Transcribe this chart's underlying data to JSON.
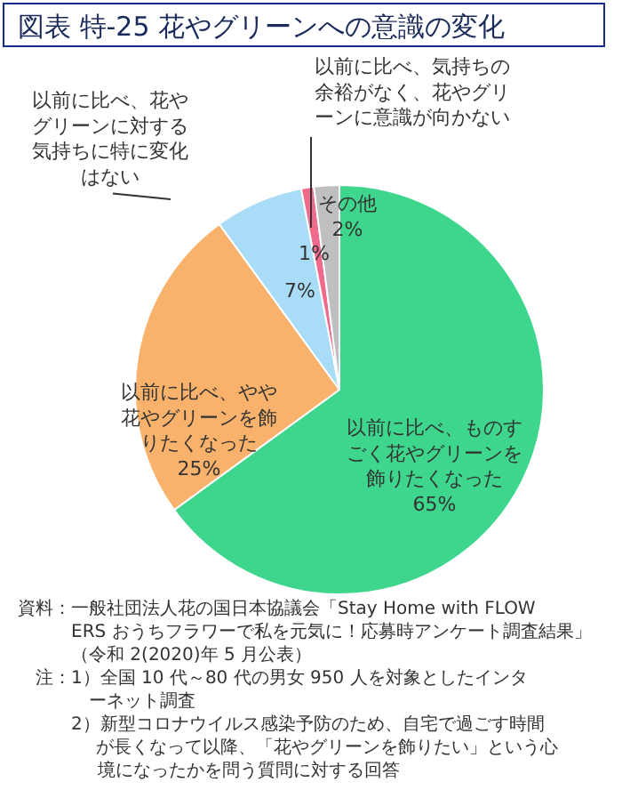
{
  "chart_data": {
    "type": "pie",
    "title": "図表 特-25 花やグリーンへの意識の変化",
    "categories": [
      "以前に比べ、ものすごく花やグリーンを飾りたくなった",
      "以前に比べ、やや花やグリーンを飾りたくなった",
      "以前に比べ、花やグリーンに対する気持ちに特に変化はない",
      "以前に比べ、気持ちの余裕がなく、花やグリーンに意識が向かない",
      "その他"
    ],
    "values": [
      65,
      25,
      7,
      1,
      2
    ],
    "value_labels": [
      "65%",
      "25%",
      "7%",
      "1%",
      "2%"
    ],
    "colors": [
      "#3dd68c",
      "#f9b26c",
      "#a9dcf7",
      "#f06a8c",
      "#bfbfbf"
    ],
    "legend": false,
    "annotations": [
      "資料：一般社団法人花の国日本協議会「Stay Home with FLOWERS おうちフラワーで私を元気に！応募時アンケート調査結果」（令和 2(2020)年 5 月公表）",
      "注：1）全国 10 代～80 代の男女 950 人を対象としたインターネット調査",
      "2）新型コロナウイルス感染予防のため、自宅で過ごす時間が長くなって以降、「花やグリーンを飾りたい」という心境になったかを問う質問に対する回答"
    ]
  }
}
